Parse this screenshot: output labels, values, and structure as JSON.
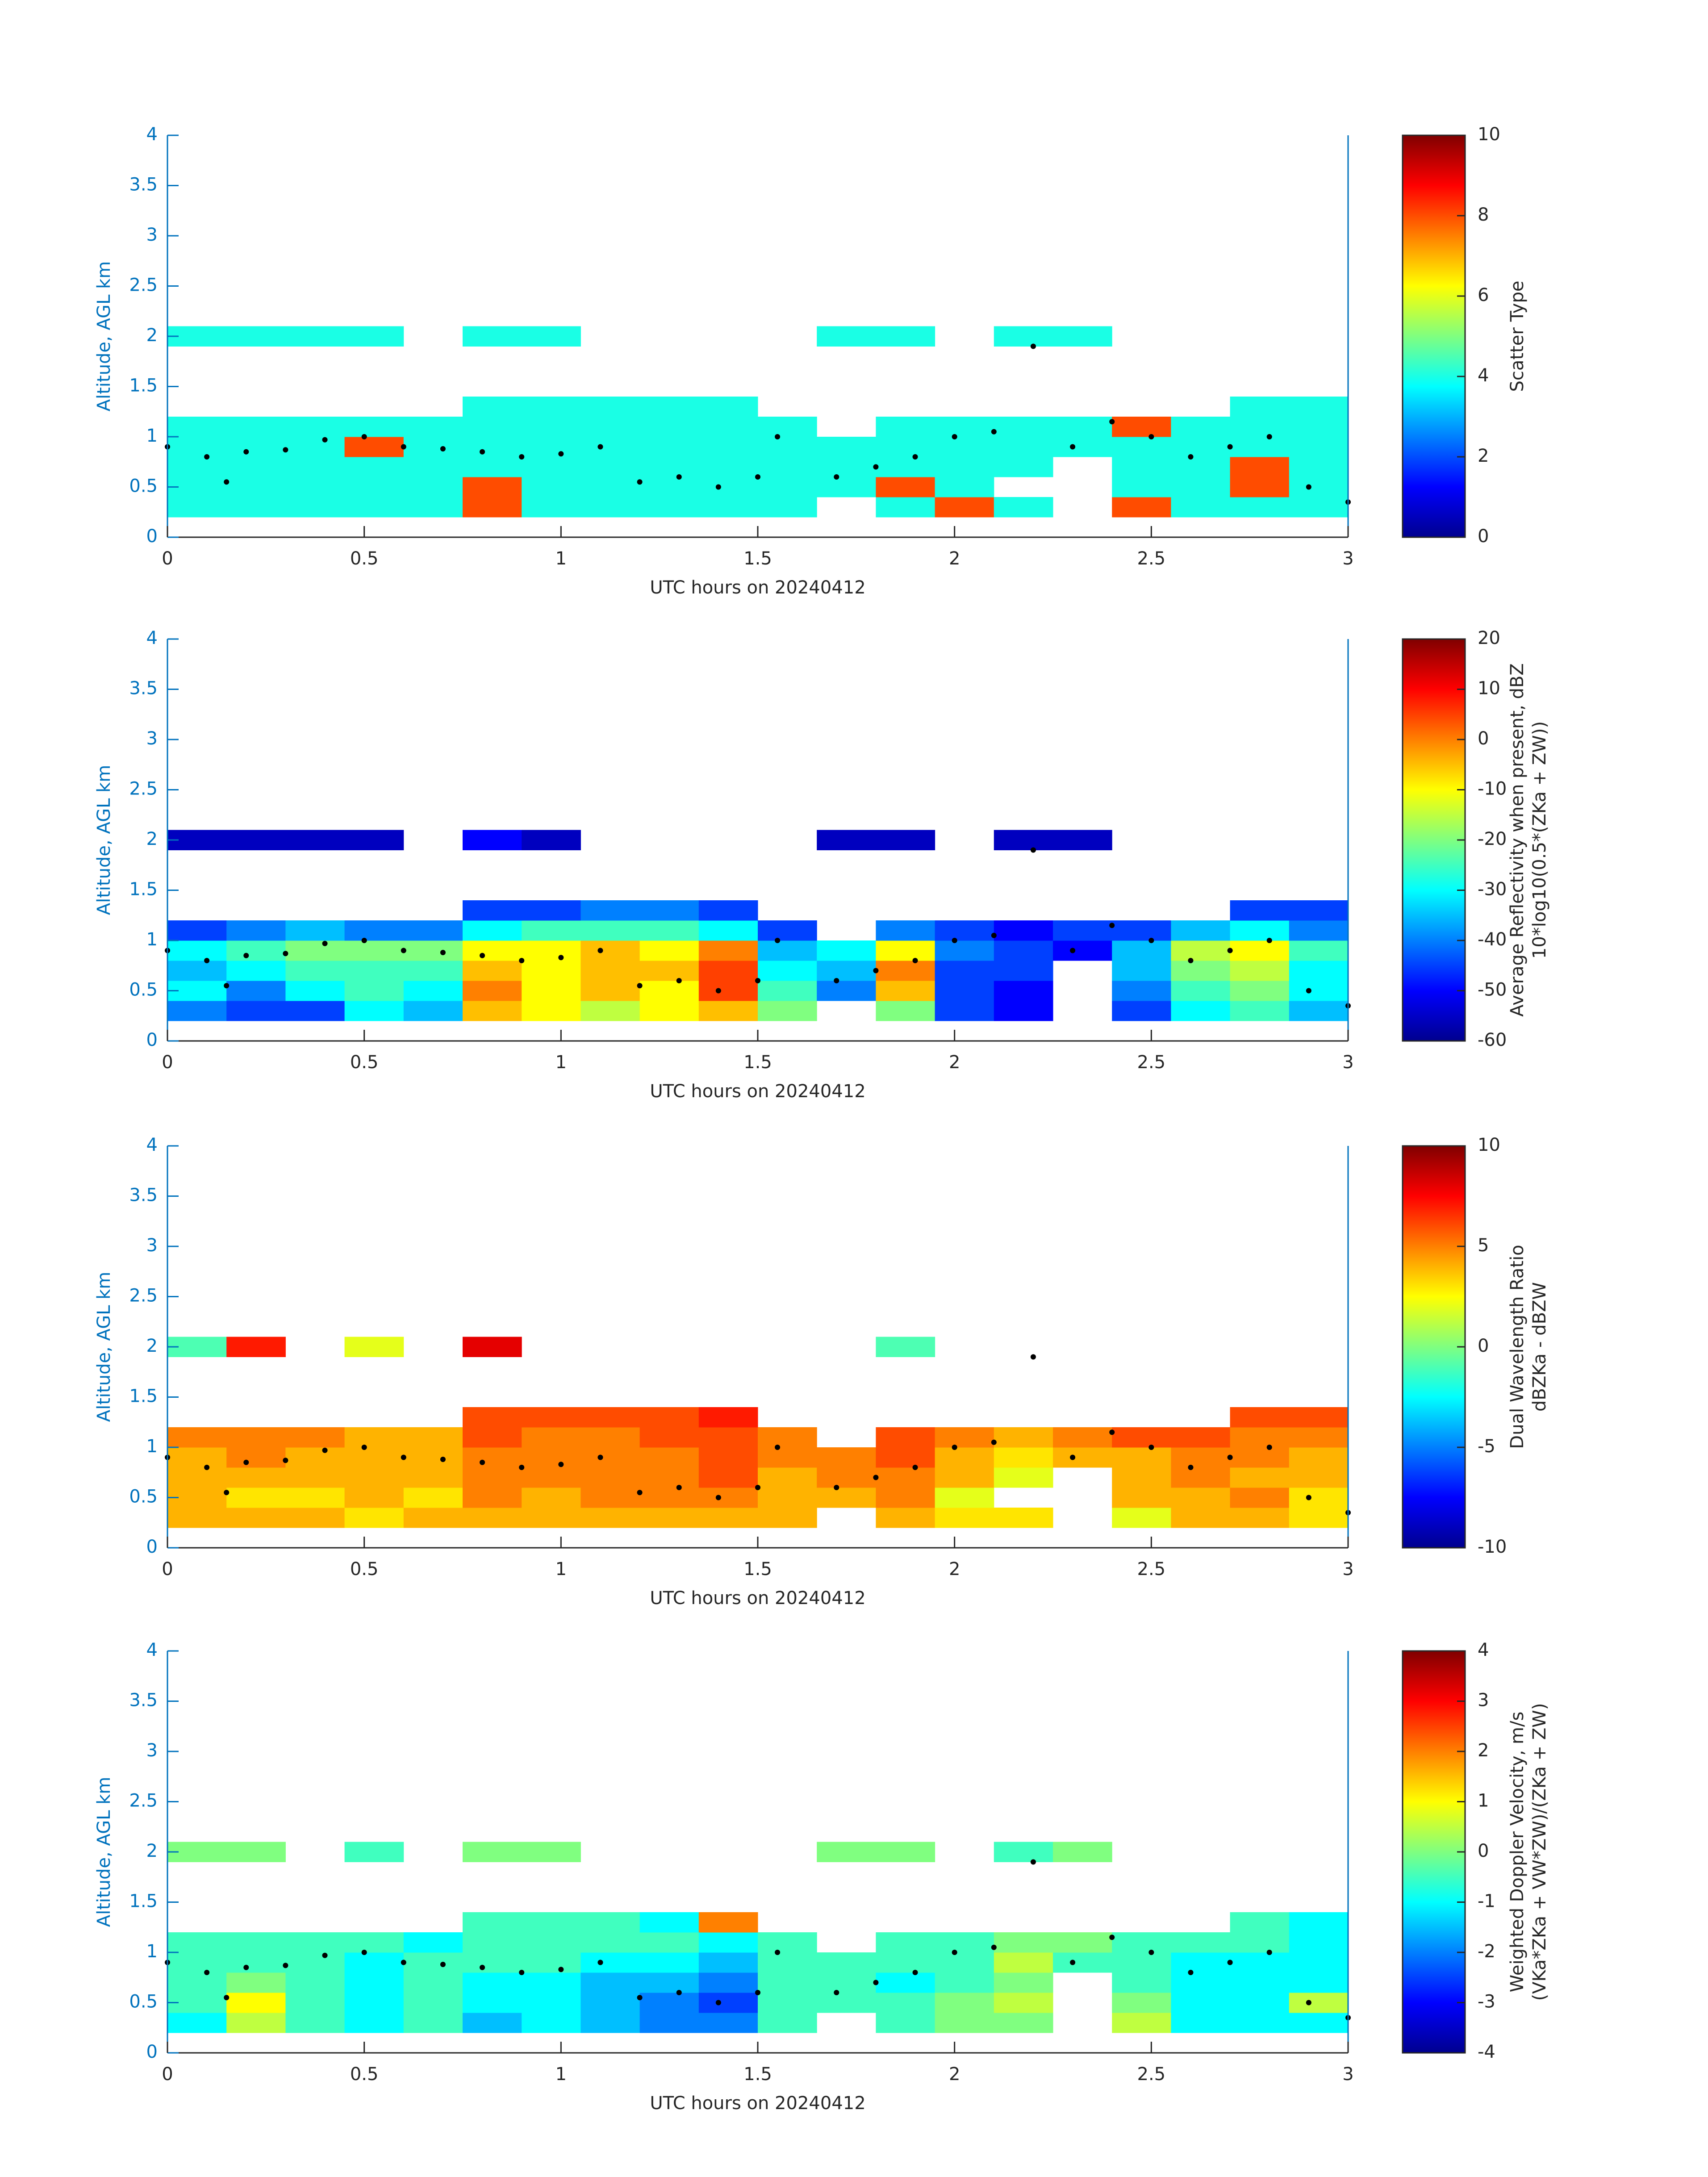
{
  "chart_data": [
    {
      "type": "heatmap",
      "xlabel": "UTC hours on 20240412",
      "ylabel": "Altitude, AGL km",
      "colorbar_label": [
        "Scatter Type"
      ],
      "colormap": "jet",
      "axis_color": "#0072bd",
      "xlim": [
        0,
        3
      ],
      "xticks": [
        0,
        0.5,
        1,
        1.5,
        2,
        2.5,
        3
      ],
      "ylim": [
        0,
        4
      ],
      "yticks": [
        0,
        0.5,
        1,
        1.5,
        2,
        2.5,
        3,
        3.5,
        4
      ],
      "clim": [
        0,
        10
      ],
      "cticks": [
        0,
        2,
        4,
        6,
        8,
        10
      ],
      "x_edges": [
        0,
        0.15,
        0.3,
        0.45,
        0.6,
        0.75,
        0.9,
        1.05,
        1.2,
        1.35,
        1.5,
        1.65,
        1.8,
        1.95,
        2.1,
        2.25,
        2.4,
        2.55,
        2.7,
        2.85,
        3
      ],
      "y_edges": [
        0.2,
        0.4,
        0.6,
        0.8,
        1.0,
        1.2,
        1.4,
        1.9,
        2.1
      ],
      "z": [
        [
          4,
          4,
          4,
          4,
          4,
          8,
          4,
          4,
          4,
          4,
          4,
          null,
          4,
          8,
          4,
          null,
          8,
          4,
          4,
          4
        ],
        [
          4,
          4,
          4,
          4,
          4,
          8,
          4,
          4,
          4,
          4,
          4,
          4,
          8,
          4,
          null,
          null,
          4,
          4,
          8,
          4
        ],
        [
          4,
          4,
          4,
          4,
          4,
          4,
          4,
          4,
          4,
          4,
          4,
          4,
          4,
          4,
          4,
          null,
          4,
          4,
          8,
          4
        ],
        [
          4,
          4,
          4,
          8,
          4,
          4,
          4,
          4,
          4,
          4,
          4,
          4,
          4,
          4,
          4,
          4,
          4,
          4,
          4,
          4
        ],
        [
          4,
          4,
          4,
          4,
          4,
          4,
          4,
          4,
          4,
          4,
          4,
          null,
          4,
          4,
          4,
          4,
          8,
          4,
          4,
          4
        ],
        [
          null,
          null,
          null,
          null,
          null,
          4,
          4,
          4,
          4,
          4,
          null,
          null,
          null,
          null,
          null,
          null,
          null,
          null,
          4,
          4
        ],
        [
          null,
          null,
          null,
          null,
          null,
          null,
          null,
          null,
          null,
          null,
          null,
          null,
          null,
          null,
          null,
          null,
          null,
          null,
          null,
          null
        ],
        [
          4,
          4,
          4,
          4,
          null,
          4,
          4,
          null,
          null,
          null,
          null,
          4,
          4,
          null,
          4,
          4,
          null,
          null,
          null,
          null
        ]
      ],
      "points": {
        "color": "#000000",
        "x": [
          0,
          0.1,
          0.15,
          0.2,
          0.3,
          0.4,
          0.5,
          0.6,
          0.7,
          0.8,
          0.9,
          1.0,
          1.1,
          1.2,
          1.3,
          1.4,
          1.5,
          1.55,
          1.7,
          1.8,
          1.9,
          2.0,
          2.1,
          2.2,
          2.3,
          2.4,
          2.5,
          2.6,
          2.7,
          2.8,
          2.9,
          3.0
        ],
        "y": [
          0.9,
          0.8,
          0.55,
          0.85,
          0.87,
          0.97,
          1.0,
          0.9,
          0.88,
          0.85,
          0.8,
          0.83,
          0.9,
          0.55,
          0.6,
          0.5,
          0.6,
          1.0,
          0.6,
          0.7,
          0.8,
          1.0,
          1.05,
          1.9,
          0.9,
          1.15,
          1.0,
          0.8,
          0.9,
          1.0,
          0.5,
          0.35
        ]
      }
    },
    {
      "type": "heatmap",
      "xlabel": "UTC hours on 20240412",
      "ylabel": "Altitude, AGL km",
      "colorbar_label": [
        "Average Reflectivity when present, dBZ",
        "10*log10(0.5*(ZKa + ZW))"
      ],
      "colormap": "jet",
      "axis_color": "#0072bd",
      "xlim": [
        0,
        3
      ],
      "xticks": [
        0,
        0.5,
        1,
        1.5,
        2,
        2.5,
        3
      ],
      "ylim": [
        0,
        4
      ],
      "yticks": [
        0,
        0.5,
        1,
        1.5,
        2,
        2.5,
        3,
        3.5,
        4
      ],
      "clim": [
        -60,
        20
      ],
      "cticks": [
        -60,
        -50,
        -40,
        -30,
        -20,
        -10,
        0,
        10,
        20
      ],
      "x_edges": [
        0,
        0.15,
        0.3,
        0.45,
        0.6,
        0.75,
        0.9,
        1.05,
        1.2,
        1.35,
        1.5,
        1.65,
        1.8,
        1.95,
        2.1,
        2.25,
        2.4,
        2.55,
        2.7,
        2.85,
        3
      ],
      "y_edges": [
        0.2,
        0.4,
        0.6,
        0.8,
        1.0,
        1.2,
        1.4,
        1.9,
        2.1
      ],
      "z": [
        [
          -40,
          -45,
          -45,
          -30,
          -35,
          -5,
          -10,
          -15,
          -10,
          -5,
          -20,
          null,
          -20,
          -45,
          -50,
          null,
          -45,
          -30,
          -25,
          -35
        ],
        [
          -30,
          -40,
          -30,
          -25,
          -30,
          0,
          -10,
          -5,
          -10,
          5,
          -25,
          -40,
          -5,
          -45,
          -50,
          null,
          -40,
          -25,
          -20,
          -30
        ],
        [
          -35,
          -30,
          -25,
          -25,
          -25,
          -5,
          -10,
          -5,
          -5,
          5,
          -30,
          -35,
          0,
          -45,
          -45,
          null,
          -35,
          -20,
          -15,
          -30
        ],
        [
          -30,
          -25,
          -20,
          -20,
          -20,
          -10,
          -10,
          -5,
          -10,
          0,
          -35,
          -30,
          -10,
          -40,
          -45,
          -50,
          -35,
          -15,
          -10,
          -25
        ],
        [
          -45,
          -40,
          -35,
          -40,
          -40,
          -30,
          -25,
          -25,
          -25,
          -30,
          -45,
          null,
          -40,
          -45,
          -50,
          -45,
          -45,
          -35,
          -30,
          -40
        ],
        [
          null,
          null,
          null,
          null,
          null,
          -45,
          -45,
          -40,
          -40,
          -45,
          null,
          null,
          null,
          null,
          null,
          null,
          null,
          null,
          -45,
          -45
        ],
        [
          null,
          null,
          null,
          null,
          null,
          null,
          null,
          null,
          null,
          null,
          null,
          null,
          null,
          null,
          null,
          null,
          null,
          null,
          null,
          null
        ],
        [
          -55,
          -55,
          -55,
          -55,
          null,
          -50,
          -55,
          null,
          null,
          null,
          null,
          -55,
          -55,
          null,
          -55,
          -55,
          null,
          null,
          null,
          null
        ]
      ],
      "points": {
        "color": "#000000",
        "x": [
          0,
          0.1,
          0.15,
          0.2,
          0.3,
          0.4,
          0.5,
          0.6,
          0.7,
          0.8,
          0.9,
          1.0,
          1.1,
          1.2,
          1.3,
          1.4,
          1.5,
          1.55,
          1.7,
          1.8,
          1.9,
          2.0,
          2.1,
          2.2,
          2.3,
          2.4,
          2.5,
          2.6,
          2.7,
          2.8,
          2.9,
          3.0
        ],
        "y": [
          0.9,
          0.8,
          0.55,
          0.85,
          0.87,
          0.97,
          1.0,
          0.9,
          0.88,
          0.85,
          0.8,
          0.83,
          0.9,
          0.55,
          0.6,
          0.5,
          0.6,
          1.0,
          0.6,
          0.7,
          0.8,
          1.0,
          1.05,
          1.9,
          0.9,
          1.15,
          1.0,
          0.8,
          0.9,
          1.0,
          0.5,
          0.35
        ]
      }
    },
    {
      "type": "heatmap",
      "xlabel": "UTC hours on 20240412",
      "ylabel": "Altitude, AGL km",
      "colorbar_label": [
        "Dual Wavelength Ratio",
        "dBZKa - dBZW"
      ],
      "colormap": "jet",
      "axis_color": "#0072bd",
      "xlim": [
        0,
        3
      ],
      "xticks": [
        0,
        0.5,
        1,
        1.5,
        2,
        2.5,
        3
      ],
      "ylim": [
        0,
        4
      ],
      "yticks": [
        0,
        0.5,
        1,
        1.5,
        2,
        2.5,
        3,
        3.5,
        4
      ],
      "clim": [
        -10,
        10
      ],
      "cticks": [
        -10,
        -5,
        0,
        5,
        10
      ],
      "x_edges": [
        0,
        0.15,
        0.3,
        0.45,
        0.6,
        0.75,
        0.9,
        1.05,
        1.2,
        1.35,
        1.5,
        1.65,
        1.8,
        1.95,
        2.1,
        2.25,
        2.4,
        2.55,
        2.7,
        2.85,
        3
      ],
      "y_edges": [
        0.2,
        0.4,
        0.6,
        0.8,
        1.0,
        1.2,
        1.4,
        1.9,
        2.1
      ],
      "z": [
        [
          4,
          4,
          4,
          3,
          4,
          4,
          4,
          4,
          4,
          4,
          4,
          null,
          4,
          3,
          3,
          null,
          2,
          4,
          4,
          3
        ],
        [
          4,
          3,
          3,
          4,
          3,
          5,
          4,
          5,
          5,
          5,
          4,
          4,
          5,
          2,
          null,
          null,
          4,
          4,
          5,
          3
        ],
        [
          4,
          4,
          4,
          4,
          4,
          5,
          5,
          5,
          5,
          6,
          4,
          5,
          5,
          4,
          2,
          null,
          4,
          5,
          4,
          4
        ],
        [
          4,
          5,
          4,
          4,
          4,
          5,
          5,
          5,
          5,
          6,
          5,
          5,
          6,
          4,
          3,
          4,
          4,
          5,
          5,
          4
        ],
        [
          5,
          5,
          5,
          4,
          4,
          6,
          5,
          5,
          6,
          6,
          5,
          null,
          6,
          5,
          4,
          5,
          6,
          6,
          5,
          5
        ],
        [
          null,
          null,
          null,
          null,
          null,
          6,
          6,
          6,
          6,
          7,
          null,
          null,
          null,
          null,
          null,
          null,
          null,
          null,
          6,
          6
        ],
        [
          null,
          null,
          null,
          null,
          null,
          null,
          null,
          null,
          null,
          null,
          null,
          null,
          null,
          null,
          null,
          null,
          null,
          null,
          null,
          null
        ],
        [
          -1,
          7,
          null,
          2,
          null,
          8,
          null,
          null,
          null,
          null,
          null,
          null,
          -1,
          null,
          null,
          null,
          null,
          null,
          null,
          null
        ]
      ],
      "points": {
        "color": "#000000",
        "x": [
          0,
          0.1,
          0.15,
          0.2,
          0.3,
          0.4,
          0.5,
          0.6,
          0.7,
          0.8,
          0.9,
          1.0,
          1.1,
          1.2,
          1.3,
          1.4,
          1.5,
          1.55,
          1.7,
          1.8,
          1.9,
          2.0,
          2.1,
          2.2,
          2.3,
          2.4,
          2.5,
          2.6,
          2.7,
          2.8,
          2.9,
          3.0
        ],
        "y": [
          0.9,
          0.8,
          0.55,
          0.85,
          0.87,
          0.97,
          1.0,
          0.9,
          0.88,
          0.85,
          0.8,
          0.83,
          0.9,
          0.55,
          0.6,
          0.5,
          0.6,
          1.0,
          0.6,
          0.7,
          0.8,
          1.0,
          1.05,
          1.9,
          0.9,
          1.15,
          1.0,
          0.8,
          0.9,
          1.0,
          0.5,
          0.35
        ]
      }
    },
    {
      "type": "heatmap",
      "xlabel": "UTC hours on 20240412",
      "ylabel": "Altitude, AGL km",
      "colorbar_label": [
        "Weighted Doppler Velocity, m/s",
        "(VKa*ZKa + VW*ZW)/(ZKa + ZW)"
      ],
      "colormap": "jet",
      "axis_color": "#0072bd",
      "xlim": [
        0,
        3
      ],
      "xticks": [
        0,
        0.5,
        1,
        1.5,
        2,
        2.5,
        3
      ],
      "ylim": [
        0,
        4
      ],
      "yticks": [
        0,
        0.5,
        1,
        1.5,
        2,
        2.5,
        3,
        3.5,
        4
      ],
      "clim": [
        -4,
        4
      ],
      "cticks": [
        -4,
        -3,
        -2,
        -1,
        0,
        1,
        2,
        3,
        4
      ],
      "x_edges": [
        0,
        0.15,
        0.3,
        0.45,
        0.6,
        0.75,
        0.9,
        1.05,
        1.2,
        1.35,
        1.5,
        1.65,
        1.8,
        1.95,
        2.1,
        2.25,
        2.4,
        2.55,
        2.7,
        2.85,
        3
      ],
      "y_edges": [
        0.2,
        0.4,
        0.6,
        0.8,
        1.0,
        1.2,
        1.4,
        1.9,
        2.1
      ],
      "z": [
        [
          -1,
          0.5,
          -0.5,
          -1,
          -0.5,
          -1.5,
          -1,
          -1.5,
          -2,
          -2,
          -0.5,
          null,
          -0.5,
          0,
          0,
          null,
          0.5,
          -1,
          -1,
          -1
        ],
        [
          -0.5,
          1,
          -0.5,
          -1,
          -0.5,
          -1,
          -1,
          -1.5,
          -2,
          -2.5,
          -0.5,
          -0.5,
          -0.5,
          0,
          0.5,
          null,
          0,
          -1,
          -1,
          0.5
        ],
        [
          -0.5,
          0,
          -0.5,
          -1,
          -0.5,
          -1,
          -1,
          -1.5,
          -1.5,
          -2,
          -0.5,
          -0.5,
          -1,
          -0.5,
          0,
          null,
          -0.5,
          -1,
          -1,
          -1
        ],
        [
          -0.5,
          -0.5,
          -0.5,
          -1,
          -0.5,
          -0.5,
          -0.5,
          -1,
          -1,
          -1.5,
          -0.5,
          -0.5,
          -0.5,
          -0.5,
          0.5,
          -0.5,
          -0.5,
          -1,
          -1,
          -1
        ],
        [
          -0.5,
          -0.5,
          -0.5,
          -0.5,
          -1,
          -0.5,
          -0.5,
          -0.5,
          -0.5,
          -1,
          -0.5,
          null,
          -0.5,
          -0.5,
          0,
          0,
          -0.5,
          -0.5,
          -0.5,
          -1
        ],
        [
          null,
          null,
          null,
          null,
          null,
          -0.5,
          -0.5,
          -0.5,
          -1,
          2,
          null,
          null,
          null,
          null,
          null,
          null,
          null,
          null,
          -0.5,
          -1
        ],
        [
          null,
          null,
          null,
          null,
          null,
          null,
          null,
          null,
          null,
          null,
          null,
          null,
          null,
          null,
          null,
          null,
          null,
          null,
          null,
          null
        ],
        [
          0,
          0,
          null,
          -0.5,
          null,
          0,
          0,
          null,
          null,
          null,
          null,
          0,
          0,
          null,
          -0.5,
          0,
          null,
          null,
          null,
          null
        ]
      ],
      "points": {
        "color": "#000000",
        "x": [
          0,
          0.1,
          0.15,
          0.2,
          0.3,
          0.4,
          0.5,
          0.6,
          0.7,
          0.8,
          0.9,
          1.0,
          1.1,
          1.2,
          1.3,
          1.4,
          1.5,
          1.55,
          1.7,
          1.8,
          1.9,
          2.0,
          2.1,
          2.2,
          2.3,
          2.4,
          2.5,
          2.6,
          2.7,
          2.8,
          2.9,
          3.0
        ],
        "y": [
          0.9,
          0.8,
          0.55,
          0.85,
          0.87,
          0.97,
          1.0,
          0.9,
          0.88,
          0.85,
          0.8,
          0.83,
          0.9,
          0.55,
          0.6,
          0.5,
          0.6,
          1.0,
          0.6,
          0.7,
          0.8,
          1.0,
          1.05,
          1.9,
          0.9,
          1.15,
          1.0,
          0.8,
          0.9,
          1.0,
          0.5,
          0.35
        ]
      }
    }
  ]
}
